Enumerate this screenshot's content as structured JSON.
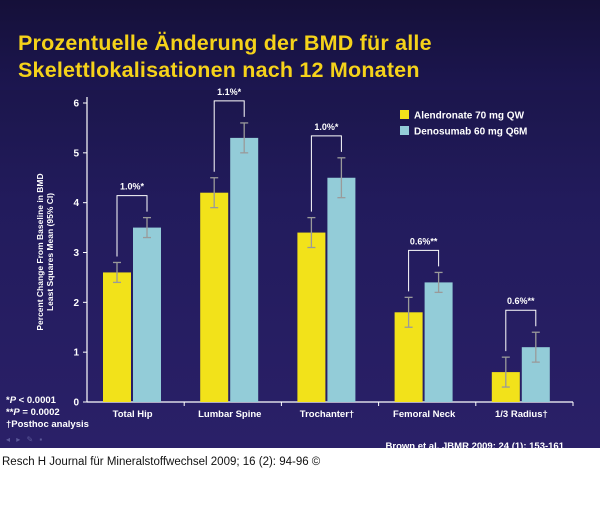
{
  "slide": {
    "title_line1": "Prozentuelle Änderung der BMD für alle",
    "title_line2": "Skelettlokalisationen nach 12 Monaten",
    "footnote_1_sym": "*",
    "footnote_1_p": "P",
    "footnote_1_rest": " < 0.0001",
    "footnote_2_sym": "**",
    "footnote_2_p": "P",
    "footnote_2_rest": " = 0.0002",
    "footnote_3": "†Posthoc analysis",
    "citation": "Brown et al. JBMR 2009; 24 (1): 153-161",
    "nav_icons": "◂ ▸ ✎ ▪"
  },
  "caption": "Resch H Journal für Mineralstoffwechsel 2009; 16 (2): 94-96 ©",
  "colors": {
    "alendronate": "#f2e21a",
    "denosumab": "#93ccd8",
    "axis": "#ffffff",
    "error_bar": "#9a9a9a",
    "bracket": "#ffffff",
    "title": "#f5d21a"
  },
  "chart_data": {
    "type": "bar",
    "ylabel_line1": "Percent Change From Baseline in BMD",
    "ylabel_line2": "Least Squares Mean (95% CI)",
    "ylim": [
      0,
      6
    ],
    "yticks": [
      "0",
      "1",
      "2",
      "3",
      "4",
      "5",
      "6"
    ],
    "categories": [
      "Total Hip",
      "Lumbar Spine",
      "Trochanter†",
      "Femoral Neck",
      "1/3 Radius†"
    ],
    "series": [
      {
        "name": "Alendronate 70 mg QW",
        "values": [
          2.6,
          4.2,
          3.4,
          1.8,
          0.6
        ],
        "ci_low": [
          2.4,
          3.9,
          3.1,
          1.5,
          0.3
        ],
        "ci_high": [
          2.8,
          4.5,
          3.7,
          2.1,
          0.9
        ]
      },
      {
        "name": "Denosumab 60 mg Q6M",
        "values": [
          3.5,
          5.3,
          4.5,
          2.4,
          1.1
        ],
        "ci_low": [
          3.3,
          5.0,
          4.1,
          2.2,
          0.8
        ],
        "ci_high": [
          3.7,
          5.6,
          4.9,
          2.6,
          1.4
        ]
      }
    ],
    "differences": [
      "1.0%*",
      "1.1%*",
      "1.0%*",
      "0.6%**",
      "0.6%**"
    ],
    "legend_position": "top-right"
  }
}
